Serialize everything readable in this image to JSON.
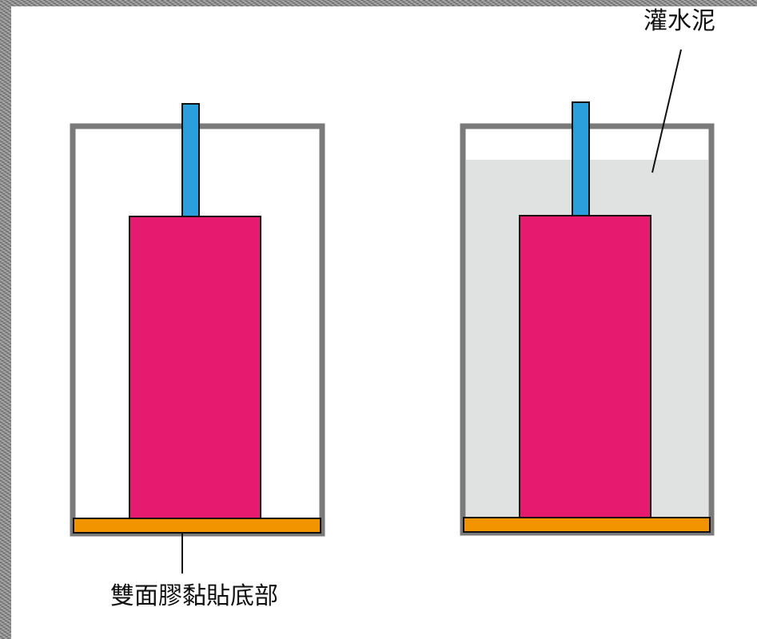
{
  "labels": {
    "cement": "灌水泥",
    "tape": "雙面膠黏貼底部"
  },
  "colors": {
    "container_outline": "#7a7a7a",
    "block": "#e61a6e",
    "rod": "#2a9fdb",
    "base_plate": "#f29300",
    "cement_fill": "#e0e2e2",
    "leader_line": "#111111"
  }
}
